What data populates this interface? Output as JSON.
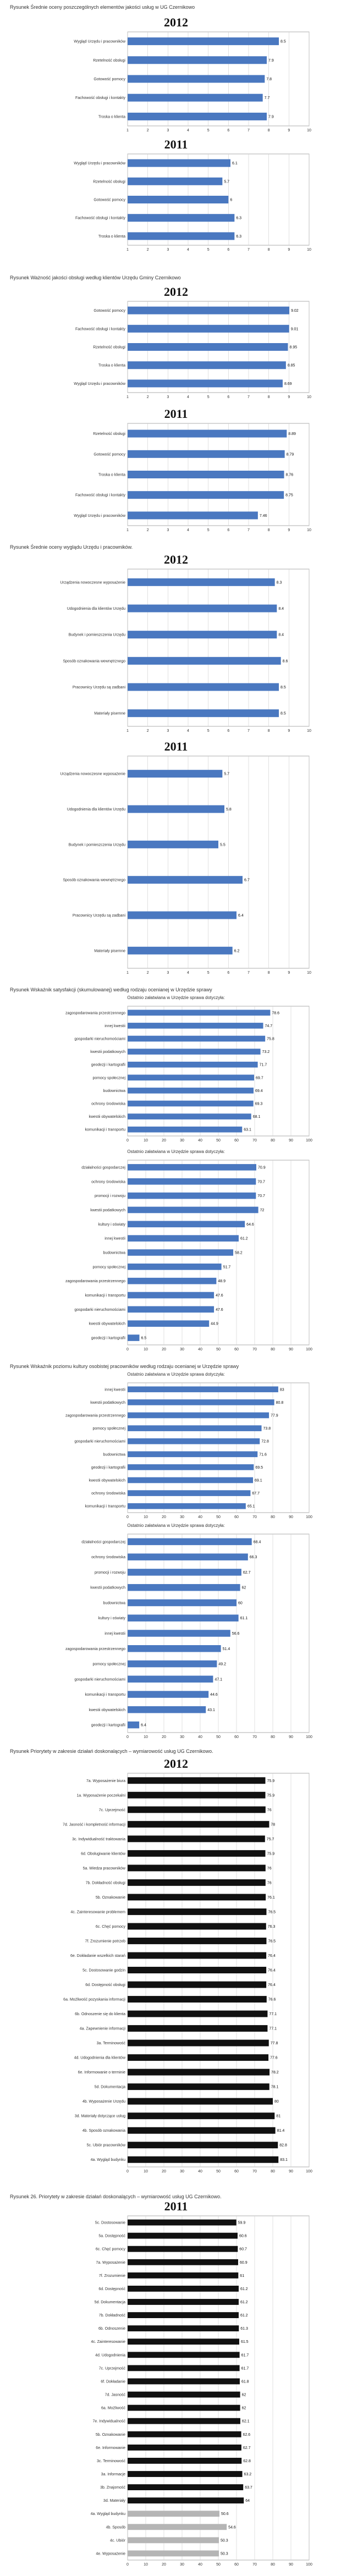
{
  "captions": [
    "Rysunek    Średnie oceny poszczególnych elementów jakości usług w UG Czernikowo",
    "Rysunek    Ważność jakości obsługi według klientów Urzędu Gminy Czernikowo",
    "Rysunek    Średnie oceny wyglądu Urzędu i pracowników.",
    "Rysunek    Wskaźnik satysfakcji (skumulowanej) według rodzaju ocenianej w Urzędzie sprawy",
    "Rysunek    Wskaźnik poziomu kultury osobistej pracowników według rodzaju ocenianej w Urzędzie sprawy",
    "Rysunek    Priorytety w zakresie działań doskonalących – wymiarowość usług UG Czernikowo.",
    "Rysunek 26. Priorytety w zakresie działań doskonalących – wymiarowość usług UG Czernikowo."
  ],
  "colors": {
    "bar_blue": "#4a78c0",
    "bar_black": "#111111",
    "bar_grey": "#b5b5b5"
  },
  "chart_data": [
    {
      "type": "bar",
      "orientation": "horizontal",
      "title": "2012",
      "categories": [
        "Wygląd Urzędu i pracowników",
        "Rzetelność obsługi",
        "Gotowość pomocy",
        "Fachowość obsługi i kontakty",
        "Troska o klienta"
      ],
      "values": [
        8.5,
        7.9,
        7.8,
        7.7,
        7.9
      ],
      "xlim": [
        1,
        10
      ],
      "ticks": [
        1,
        2,
        3,
        4,
        5,
        6,
        7,
        8,
        9,
        10
      ]
    },
    {
      "type": "bar",
      "orientation": "horizontal",
      "title": "2011",
      "categories": [
        "Wygląd Urzędu i pracowników",
        "Rzetelność obsługi",
        "Gotowość pomocy",
        "Fachowość obsługi i kontakty",
        "Troska o klienta"
      ],
      "values": [
        6.1,
        5.7,
        6.0,
        6.3,
        6.3
      ],
      "xlim": [
        1,
        10
      ],
      "ticks": [
        1,
        2,
        3,
        4,
        5,
        6,
        7,
        8,
        9,
        10
      ]
    },
    {
      "type": "bar",
      "orientation": "horizontal",
      "title": "2012",
      "categories": [
        "Gotowość pomocy",
        "Fachowość obsługi i kontakty",
        "Rzetelność obsługi",
        "Troska o klienta",
        "Wygląd Urzędu i pracowników"
      ],
      "values": [
        9.02,
        9.01,
        8.95,
        8.85,
        8.69
      ],
      "xlim": [
        1,
        10
      ],
      "ticks": [
        1,
        2,
        3,
        4,
        5,
        6,
        7,
        8,
        9,
        10
      ]
    },
    {
      "type": "bar",
      "orientation": "horizontal",
      "title": "2011",
      "categories": [
        "Rzetelność obsługi",
        "Gotowość pomocy",
        "Troska o klienta",
        "Fachowość obsługi i kontakty",
        "Wygląd Urzędu i pracowników"
      ],
      "values": [
        8.89,
        8.79,
        8.76,
        8.75,
        7.46
      ],
      "xlim": [
        1,
        10
      ],
      "ticks": [
        1,
        2,
        3,
        4,
        5,
        6,
        7,
        8,
        9,
        10
      ]
    },
    {
      "type": "bar",
      "orientation": "horizontal",
      "title": "2012",
      "categories": [
        "Urządzenia nowoczesne wyposażenie",
        "Udogodnienia dla klientów Urzędu",
        "Budynek i pomieszczenia Urzędu",
        "Sposób oznakowania wewnętrznego",
        "Pracownicy Urzędu są zadbani",
        "Materiały pisemne"
      ],
      "values": [
        8.3,
        8.4,
        8.4,
        8.6,
        8.5,
        8.5
      ],
      "xlim": [
        1,
        10
      ],
      "ticks": [
        1,
        2,
        3,
        4,
        5,
        6,
        7,
        8,
        9,
        10
      ]
    },
    {
      "type": "bar",
      "orientation": "horizontal",
      "title": "2011",
      "categories": [
        "Urządzenia nowoczesne wyposażenie",
        "Udogodnienia dla klientów Urzędu",
        "Budynek i pomieszczenia Urzędu",
        "Sposób oznakowania wewnętrznego",
        "Pracownicy Urzędu są zadbani",
        "Materiały pisemne"
      ],
      "values": [
        5.7,
        5.8,
        5.5,
        6.7,
        6.4,
        6.2
      ],
      "xlim": [
        1,
        10
      ],
      "ticks": [
        1,
        2,
        3,
        4,
        5,
        6,
        7,
        8,
        9,
        10
      ]
    },
    {
      "type": "bar",
      "orientation": "horizontal",
      "title": "Ostatnio załatwiana w Urzędzie sprawa dotyczyła:",
      "categories": [
        "zagospodarowania przestrzennego",
        "innej kwestii",
        "gospodarki nieruchomościami",
        "kwestii podatkowych",
        "geodezji i kartografii",
        "pomocy społecznej",
        "budownictwa",
        "ochrony środowiska",
        "kwestii obywatelskich",
        "komunikacji i transportu"
      ],
      "values": [
        78.6,
        74.7,
        75.8,
        73.2,
        71.7,
        69.7,
        69.4,
        69.3,
        68.1,
        63.1
      ],
      "xlim": [
        0,
        100
      ],
      "ticks": [
        0,
        10,
        20,
        30,
        40,
        50,
        60,
        70,
        80,
        90,
        100
      ]
    },
    {
      "type": "bar",
      "orientation": "horizontal",
      "title": "Ostatnio załatwiana w Urzędzie sprawa dotyczyła:",
      "categories": [
        "działalności gospodarczej",
        "ochrony środowiska",
        "promocji i rozwoju",
        "kwestii podatkowych",
        "kultury i oświaty",
        "innej kwestii",
        "budownictwa",
        "pomocy społecznej",
        "zagospodarowania przestrzennego",
        "komunikacji i transportu",
        "gospodarki nieruchomościami",
        "kwestii obywatelskich",
        "geodezji i kartografii"
      ],
      "values": [
        70.9,
        70.7,
        70.7,
        72.0,
        64.6,
        61.2,
        58.2,
        51.7,
        48.9,
        47.6,
        47.6,
        44.9,
        6.5
      ],
      "xlim": [
        0,
        100
      ],
      "ticks": [
        0,
        10,
        20,
        30,
        40,
        50,
        60,
        70,
        80,
        90,
        100
      ]
    },
    {
      "type": "bar",
      "orientation": "horizontal",
      "title": "Ostatnio załatwiana w Urzędzie sprawa dotyczyła:",
      "categories": [
        "innej kwestii",
        "kwestii podatkowych",
        "zagospodarowania przestrzennego",
        "pomocy społecznej",
        "gospodarki nieruchomościami",
        "budownictwa",
        "geodezji i kartografii",
        "kwestii obywatelskich",
        "ochrony środowiska",
        "komunikacji i transportu"
      ],
      "values": [
        83.0,
        80.8,
        77.9,
        73.8,
        72.8,
        71.6,
        69.5,
        69.1,
        67.7,
        65.1
      ],
      "xlim": [
        0,
        100
      ],
      "ticks": [
        0,
        10,
        20,
        30,
        40,
        50,
        60,
        70,
        80,
        90,
        100
      ]
    },
    {
      "type": "bar",
      "orientation": "horizontal",
      "title": "Ostatnio załatwiana w Urzędzie sprawa dotyczyła:",
      "categories": [
        "działalności gospodarczej",
        "ochrony środowiska",
        "promocji i rozwoju",
        "kwestii podatkowych",
        "budownictwa",
        "kultury i oświaty",
        "innej kwestii",
        "zagospodarowania przestrzennego",
        "pomocy społecznej",
        "gospodarki nieruchomościami",
        "komunikacji i transportu",
        "kwestii obywatelskich",
        "geodezji i kartografii"
      ],
      "values": [
        68.4,
        66.3,
        62.7,
        62.0,
        60.0,
        61.1,
        56.6,
        51.4,
        49.2,
        47.1,
        44.6,
        43.1,
        6.4
      ],
      "xlim": [
        0,
        100
      ],
      "ticks": [
        0,
        10,
        20,
        30,
        40,
        50,
        60,
        70,
        80,
        90,
        100
      ]
    },
    {
      "type": "bar",
      "orientation": "horizontal",
      "title": "2012",
      "categories": [
        "7a. Wyposażenie biura",
        "1a. Wyposażenie poczekalni",
        "7c. Uprzejmość",
        "7d. Jasność i kompletność informacji",
        "3c. Indywidualność traktowania",
        "6d. Obsługiwanie klientów",
        "5a. Wiedza pracowników",
        "7b. Dokładność obsługi",
        "5b. Oznakowanie",
        "4c. Zainteresowanie problemem",
        "6c. Chęć pomocy",
        "7f. Zrozumienie potrzeb",
        "6e. Dokładanie wszelkich starań",
        "5c. Dostosowanie godzin",
        "6d. Dostępność obsługi",
        "6a. Możliwość pozyskania informacji",
        "6b. Odnoszenie się do klienta",
        "4a. Zapewnienie informacji",
        "3a. Terminowość",
        "4d. Udogodnienia dla klientów",
        "6e. Informowanie o terminie",
        "5d. Dokumentacja",
        "4b. Wyposażenie Urzędu",
        "3d. Materiały dotyczące usług",
        "4b. Sposób oznakowania",
        "5c. Ubiór pracowników",
        "4a. Wygląd budynku"
      ],
      "values": [
        75.9,
        75.9,
        76.0,
        78.0,
        75.7,
        75.9,
        76.0,
        76.0,
        76.1,
        76.5,
        76.3,
        76.5,
        76.4,
        76.4,
        76.4,
        76.6,
        77.1,
        77.1,
        77.8,
        77.6,
        78.2,
        78.1,
        80.0,
        81.0,
        81.4,
        82.8,
        83.1
      ],
      "xlim": [
        0,
        100
      ],
      "ticks": [
        0,
        10,
        20,
        30,
        40,
        50,
        60,
        70,
        80,
        90,
        100
      ]
    },
    {
      "type": "bar",
      "orientation": "horizontal",
      "title": "2011",
      "categories": [
        "5c. Dostosowanie",
        "5a. Dostępność",
        "6c. Chęć pomocy",
        "7a. Wyposażenie",
        "7f. Zrozumienie",
        "6d. Dostępność",
        "5d. Dokumentacja",
        "7b. Dokładność",
        "6b. Odnoszenie",
        "4c. Zainteresowanie",
        "4d. Udogodnienia",
        "7c. Uprzejmość",
        "6f. Dokładanie",
        "7d. Jasność",
        "6a. Możliwość",
        "7e. Indywidualność",
        "5b. Oznakowanie",
        "6e. Informowanie",
        "3c. Terminowość",
        "3a. Informacje",
        "3b. Znajomość",
        "3d. Materiały",
        "4a. Wygląd budynku",
        "4b. Sposób",
        "4c. Ubiór",
        "4e. Wyposażenie"
      ],
      "values": [
        59.9,
        60.6,
        60.7,
        60.9,
        61.0,
        61.2,
        61.2,
        61.2,
        61.3,
        61.5,
        61.7,
        61.7,
        61.8,
        62.0,
        62.0,
        62.1,
        62.6,
        62.7,
        62.8,
        63.2,
        63.7,
        64.0,
        50.6,
        54.6,
        50.3,
        50.3
      ],
      "series_colors": [
        "black",
        "black",
        "black",
        "black",
        "black",
        "black",
        "black",
        "black",
        "black",
        "black",
        "black",
        "black",
        "black",
        "black",
        "black",
        "black",
        "black",
        "black",
        "black",
        "black",
        "black",
        "black",
        "grey",
        "grey",
        "grey",
        "grey"
      ],
      "xlim": [
        0,
        100
      ],
      "ticks": [
        0,
        10,
        20,
        30,
        40,
        50,
        60,
        70,
        80,
        90,
        100
      ]
    }
  ]
}
